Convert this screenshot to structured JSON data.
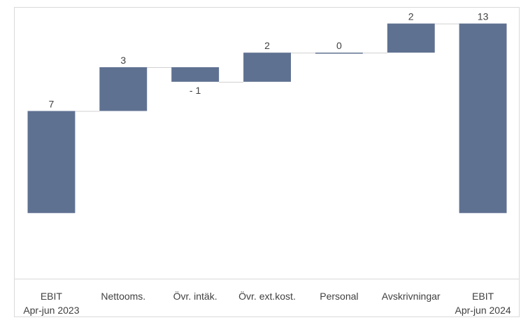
{
  "chart_data": {
    "type": "bar",
    "subtype": "waterfall",
    "categories": [
      [
        "EBIT",
        "Apr-jun 2023"
      ],
      [
        "Nettooms."
      ],
      [
        "Övr. intäk."
      ],
      [
        "Övr. ext.kost."
      ],
      [
        "Personal"
      ],
      [
        "Avskrivningar"
      ],
      [
        "EBIT",
        "Apr-jun 2024"
      ]
    ],
    "values": [
      7,
      3,
      -1,
      2,
      0,
      2,
      13
    ],
    "value_labels": [
      "7",
      "3",
      "- 1",
      "2",
      "0",
      "2",
      "13"
    ],
    "bar_kinds": [
      "total",
      "delta",
      "delta",
      "delta",
      "delta",
      "delta",
      "total"
    ],
    "title": "",
    "xlabel": "",
    "ylabel": "",
    "ylim": [
      -4.5,
      13.7
    ],
    "grid": false,
    "legend": "none",
    "colors": {
      "bar": "#5f7191",
      "connector": "#d0d0d0",
      "axis": "#d9d9d9",
      "frame": "#d9d9d9",
      "text": "#404040",
      "inside_text": "#ffffff"
    }
  }
}
